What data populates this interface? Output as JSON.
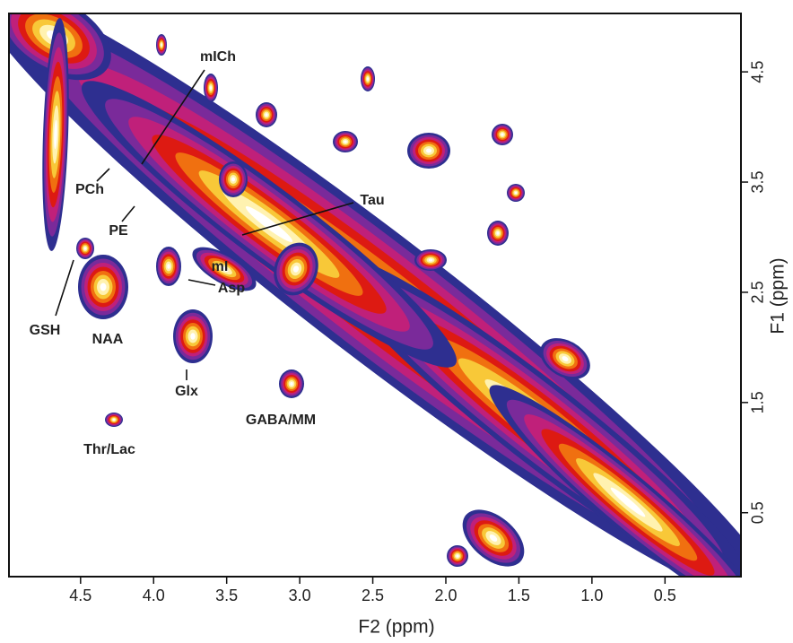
{
  "chart_data": {
    "type": "contour",
    "xlabel": "F2 (ppm)",
    "ylabel": "F1 (ppm)",
    "xlim": [
      4.99,
      -0.02
    ],
    "ylim": [
      -0.08,
      5.03
    ],
    "xticks": [
      4.5,
      {
        "value": 4,
        "label": "4.0"
      },
      3.5,
      {
        "value": 3,
        "label": "3.0"
      },
      2.5,
      {
        "value": 2,
        "label": "2.0"
      },
      1.5,
      {
        "value": 1,
        "label": "1.0"
      },
      0.5
    ],
    "yticks": [
      0.5,
      1.5,
      2.5,
      3.5,
      4.5
    ],
    "annotations": [
      "mICh",
      "PCh",
      "PE",
      "Tau",
      "mI",
      "Asp",
      "GSH",
      "NAA",
      "Glx",
      "GABA/MM",
      "Thr/Lac"
    ]
  }
}
